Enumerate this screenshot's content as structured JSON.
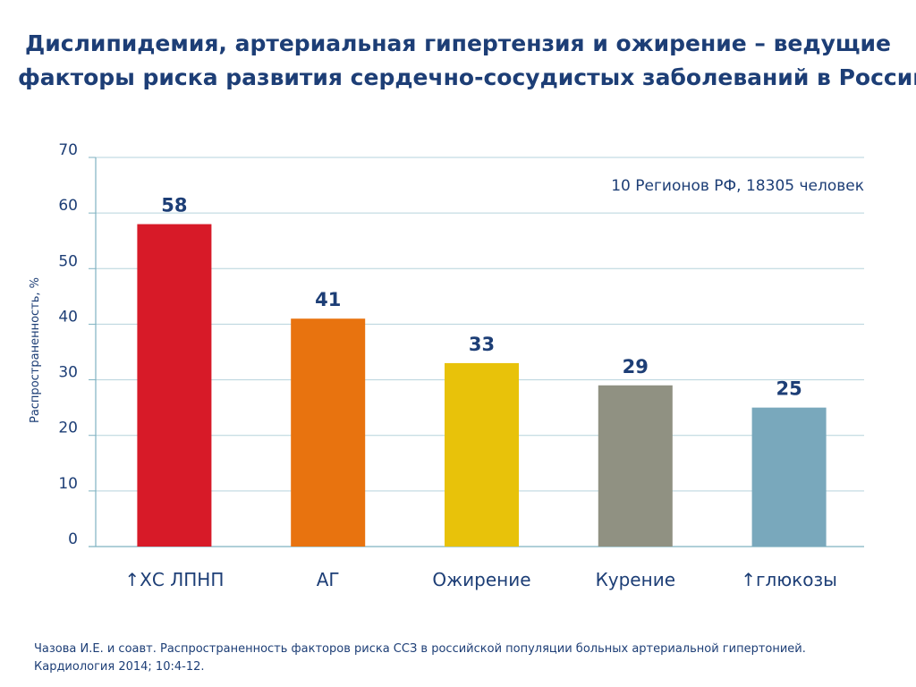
{
  "title_lines": [
    "Дислипидемия, артериальная гипертензия и ожирение – ведущие",
    "факторы риска развития сердечно-сосудистых заболеваний в России"
  ],
  "chart_data": {
    "type": "bar",
    "title": "Дислипидемия, артериальная гипертензия и ожирение – ведущие факторы риска развития сердечно-сосудистых заболеваний в России",
    "categories": [
      "↑ХС ЛПНП",
      "АГ",
      "Ожирение",
      "Курение",
      "↑глюкозы"
    ],
    "values": [
      58,
      41,
      33,
      29,
      25
    ],
    "data_labels": [
      "58",
      "41",
      "33",
      "29",
      "25"
    ],
    "colors": [
      "#d71a28",
      "#e8730f",
      "#e8c20a",
      "#909182",
      "#79a8bc"
    ],
    "xlabel": "",
    "ylabel": "Распространенность, %",
    "ylim": [
      0,
      70
    ],
    "yticks": [
      0,
      10,
      20,
      30,
      40,
      50,
      60,
      70
    ],
    "grid": true,
    "legend": "none",
    "annotation": "10 Регионов РФ, 18305 человек"
  },
  "footnote_lines": [
    "Чазова И.Е. и соавт.  Распространенность факторов риска ССЗ в российской популяции больных артериальной гипертонией.",
    "Кардиология 2014; 10:4-12."
  ]
}
